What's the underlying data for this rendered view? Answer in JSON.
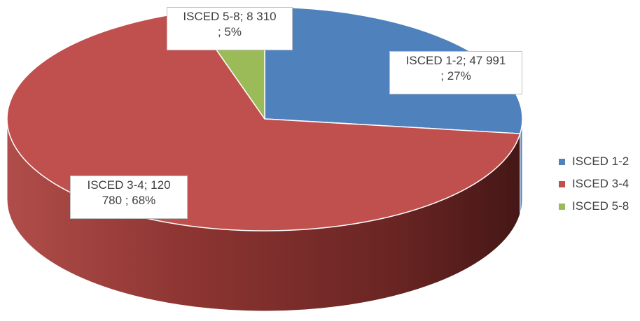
{
  "chart_data": {
    "type": "pie",
    "title": "",
    "categories": [
      "ISCED 1-2",
      "ISCED 3-4",
      "ISCED 5-8"
    ],
    "values": [
      47991,
      120780,
      8310
    ],
    "percentages": [
      27,
      68,
      5
    ],
    "colors": [
      "#4f81bd",
      "#c0504d",
      "#9bbb59"
    ],
    "style": "3d",
    "data_labels": [
      "ISCED 1-2;  47 991\n; 27%",
      "ISCED 5-8;  8 310\n; 5%",
      "ISCED 3-4;  120\n780    ; 68%"
    ],
    "legend": {
      "position": "right",
      "entries": [
        "ISCED 1-2",
        "ISCED 3-4",
        "ISCED 5-8"
      ]
    }
  }
}
